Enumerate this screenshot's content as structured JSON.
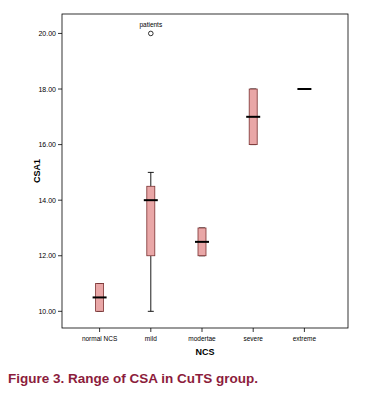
{
  "chart_data": {
    "type": "box",
    "caption": "Figure 3. Range of CSA in CuTS group.",
    "x_label": "NCS",
    "y_label": "CSA1",
    "categories": [
      "normal NCS",
      "mild",
      "modertae",
      "severe",
      "extreme"
    ],
    "min": [
      10,
      10,
      12,
      16,
      18
    ],
    "q1": [
      10,
      12,
      12,
      16,
      18
    ],
    "median": [
      10.5,
      14,
      12.5,
      17,
      18
    ],
    "q3": [
      11,
      14.5,
      13,
      18,
      18
    ],
    "max": [
      11,
      15,
      13,
      18,
      18
    ],
    "outliers": [
      [],
      [
        20
      ],
      [],
      [],
      []
    ],
    "outlier_labels": [
      [],
      [
        "patients"
      ],
      [],
      [],
      []
    ],
    "color": "#e9a7a7",
    "ylim": [
      9.4,
      20.7
    ],
    "yticks": [
      {
        "value": 10,
        "label": "10.00"
      },
      {
        "value": 12,
        "label": "12.00"
      },
      {
        "value": 14,
        "label": "14.00"
      },
      {
        "value": 16,
        "label": "16.00"
      },
      {
        "value": 18,
        "label": "18.00"
      },
      {
        "value": 20,
        "label": "20.00"
      }
    ]
  }
}
